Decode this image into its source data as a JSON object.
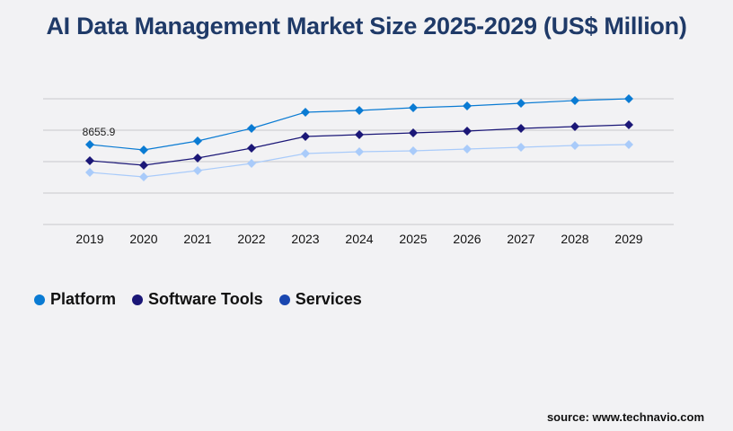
{
  "chart_data": {
    "type": "line",
    "title": "AI Data Management Market Size 2025-2029 (US$ Million)",
    "categories": [
      "2019",
      "2020",
      "2021",
      "2022",
      "2023",
      "2024",
      "2025",
      "2026",
      "2027",
      "2028",
      "2029"
    ],
    "series": [
      {
        "name": "Platform",
        "color": "#0a7bd3",
        "legend_color": "#0a7bd3",
        "values": [
          8655.9,
          8072,
          9045,
          10407,
          12158,
          12352,
          12644,
          12838,
          13130,
          13422,
          13616
        ]
      },
      {
        "name": "Software Tools",
        "color": "#1b1777",
        "legend_color": "#1b1777",
        "values": [
          6905,
          6419,
          7197,
          8267,
          9531,
          9726,
          9921,
          10115,
          10407,
          10601,
          10796
        ]
      },
      {
        "name": "Services",
        "color": "#a9cbfa",
        "legend_color": "#1a47b0",
        "values": [
          5641,
          5155,
          5836,
          6614,
          7684,
          7878,
          7975,
          8170,
          8364,
          8559,
          8656
        ]
      }
    ],
    "data_labels": [
      {
        "series": "Platform",
        "category": "2019",
        "text": "8655.9"
      }
    ],
    "ylim": [
      0,
      13616
    ],
    "grid": true,
    "legend_position": "bottom-left",
    "xlabel": "",
    "ylabel": ""
  },
  "source": "source: www.technavio.com"
}
